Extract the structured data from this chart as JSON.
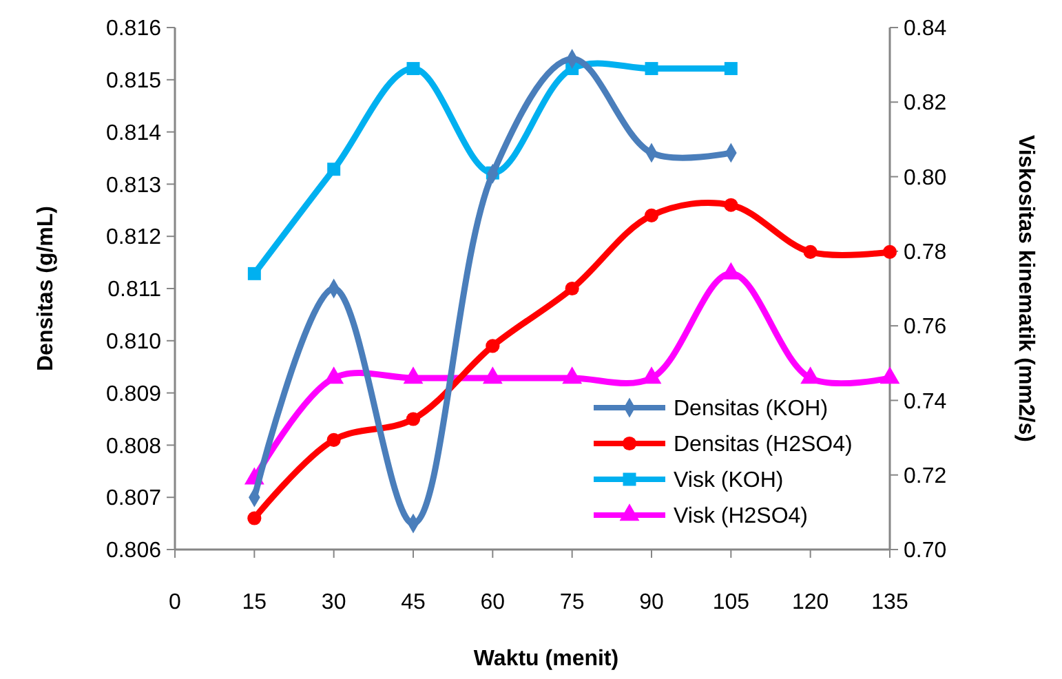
{
  "chart_data": {
    "type": "line",
    "xlabel": "Waktu (menit)",
    "ylabel": "Densitas (g/mL)",
    "y2label": "Viskositas kinematik (mm2/s)",
    "x": [
      15,
      30,
      45,
      60,
      75,
      90,
      105,
      120,
      135
    ],
    "xlim": [
      0,
      135
    ],
    "xticks": [
      0,
      15,
      30,
      45,
      60,
      75,
      90,
      105,
      120,
      135
    ],
    "ylim": [
      0.806,
      0.816
    ],
    "yticks": [
      0.806,
      0.807,
      0.808,
      0.809,
      {
        "value": 0.81,
        "label": "0.810"
      },
      0.811,
      0.812,
      0.813,
      0.814,
      0.815,
      0.816
    ],
    "y2lim": [
      0.7,
      0.84
    ],
    "y2ticks": [
      {
        "value": 0.7,
        "label": "0.70"
      },
      0.72,
      0.74,
      0.76,
      0.78,
      {
        "value": 0.8,
        "label": "0.80"
      },
      0.82,
      0.84
    ],
    "grid": false,
    "legend": "bottom right",
    "line_style": "solid",
    "series": [
      {
        "name": "Densitas (KOH)",
        "color": "#4a7ebb",
        "marker": "diamond",
        "values": [
          0.807,
          0.811,
          0.8065,
          0.8132,
          0.8154,
          0.8136,
          0.8136,
          null,
          null
        ]
      },
      {
        "name": "Densitas (H2SO4)",
        "color": "#ff0000",
        "marker": "circle",
        "values": [
          0.8066,
          0.8081,
          0.8085,
          0.8099,
          0.811,
          0.8124,
          0.8126,
          0.8117,
          0.8117
        ]
      },
      {
        "name": "Visk (KOH)",
        "color": "#00b0f0",
        "marker": "square",
        "axis": "y2",
        "values": [
          0.774,
          0.802,
          0.829,
          0.801,
          0.829,
          0.829,
          0.829,
          null,
          null
        ]
      },
      {
        "name": "Visk (H2SO4)",
        "color": "#ff00ff",
        "marker": "triangle",
        "axis": "y2",
        "values": [
          0.719,
          0.746,
          0.746,
          0.746,
          0.746,
          0.746,
          0.774,
          0.746,
          0.746
        ]
      }
    ]
  }
}
